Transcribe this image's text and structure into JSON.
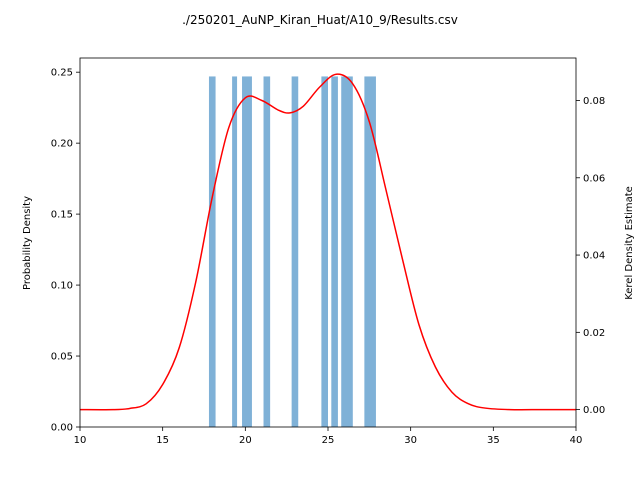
{
  "chart_data": {
    "type": "bar",
    "title": "./250201_AuNP_Kiran_Huat/A10_9/Results.csv",
    "xlabel": "",
    "ylabel": "Probability Density",
    "y2label": "Kerel Density Estimate",
    "xlim": [
      10,
      40
    ],
    "ylim": [
      0,
      0.26
    ],
    "y2lim": [
      -0.0045,
      0.091
    ],
    "grid": false,
    "x_ticks": [
      "10",
      "15",
      "20",
      "25",
      "30",
      "35",
      "40"
    ],
    "y_ticks": [
      "0.00",
      "0.05",
      "0.10",
      "0.15",
      "0.20",
      "0.25"
    ],
    "y2_ticks": [
      "0.00",
      "0.02",
      "0.04",
      "0.06",
      "0.08"
    ],
    "bar_color": "#7fb1d7",
    "kde_color": "#ff0000",
    "series": [
      {
        "type": "histogram",
        "bars": [
          {
            "x0": 17.8,
            "x1": 18.2,
            "y": 0.247
          },
          {
            "x0": 19.2,
            "x1": 19.5,
            "y": 0.247
          },
          {
            "x0": 19.8,
            "x1": 20.4,
            "y": 0.247
          },
          {
            "x0": 21.1,
            "x1": 21.5,
            "y": 0.247
          },
          {
            "x0": 22.8,
            "x1": 23.2,
            "y": 0.247
          },
          {
            "x0": 24.6,
            "x1": 25.0,
            "y": 0.247
          },
          {
            "x0": 25.2,
            "x1": 25.6,
            "y": 0.247
          },
          {
            "x0": 25.8,
            "x1": 26.5,
            "y": 0.247
          },
          {
            "x0": 27.2,
            "x1": 27.9,
            "y": 0.247
          }
        ]
      },
      {
        "type": "kde",
        "axis": "right",
        "x": [
          10,
          12,
          13,
          14,
          15,
          16,
          17,
          18,
          19,
          20,
          21,
          22,
          22.7,
          23.5,
          24.5,
          25.5,
          26.5,
          27.5,
          28.5,
          29.5,
          30.5,
          31.5,
          32.5,
          33.5,
          34.5,
          36,
          38,
          40
        ],
        "y": [
          0.0,
          0.0,
          0.0003,
          0.0015,
          0.0065,
          0.016,
          0.033,
          0.055,
          0.073,
          0.0807,
          0.08,
          0.0775,
          0.0768,
          0.0785,
          0.0835,
          0.0868,
          0.0843,
          0.0745,
          0.057,
          0.039,
          0.022,
          0.011,
          0.0045,
          0.0015,
          0.0004,
          0.0,
          0.0,
          0.0
        ]
      }
    ]
  }
}
